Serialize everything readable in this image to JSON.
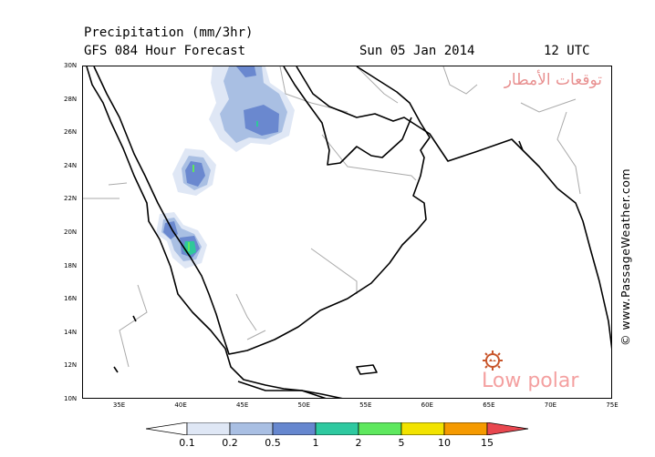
{
  "header": {
    "title": "Precipitation (mm/3hr)",
    "model": "GFS 084 Hour Forecast",
    "date": "Sun 05 Jan 2014",
    "time": "12 UTC"
  },
  "map": {
    "lon_range": [
      32,
      75
    ],
    "lat_range": [
      10,
      30
    ],
    "x_ticks": [
      "35E",
      "40E",
      "45E",
      "50E",
      "55E",
      "60E",
      "65E",
      "70E",
      "75E"
    ],
    "y_ticks": [
      "30N",
      "28N",
      "26N",
      "24N",
      "22N",
      "20N",
      "18N",
      "16N",
      "14N",
      "12N",
      "10N"
    ],
    "region": "Arabian Peninsula"
  },
  "colorbar": {
    "labels": [
      "0.1",
      "0.2",
      "0.5",
      "1",
      "2",
      "5",
      "10",
      "15"
    ],
    "colors": [
      "#ffffff",
      "#dfe7f5",
      "#a9bfe3",
      "#6687cf",
      "#2ec9a0",
      "#5ee85e",
      "#f2e300",
      "#f59a00",
      "#e8474f"
    ]
  },
  "watermarks": {
    "credit": "© www.PassageWeather.com",
    "arabic_site": "توقعات الأمطار",
    "lowpolar": "Low polar"
  },
  "colors": {
    "light_blue": "#d7e3f4",
    "mid_blue": "#a8bfe6",
    "blue": "#6a88cf",
    "teal": "#2fc89a",
    "green": "#5ee85e",
    "watermark": "#f4a0a0"
  }
}
